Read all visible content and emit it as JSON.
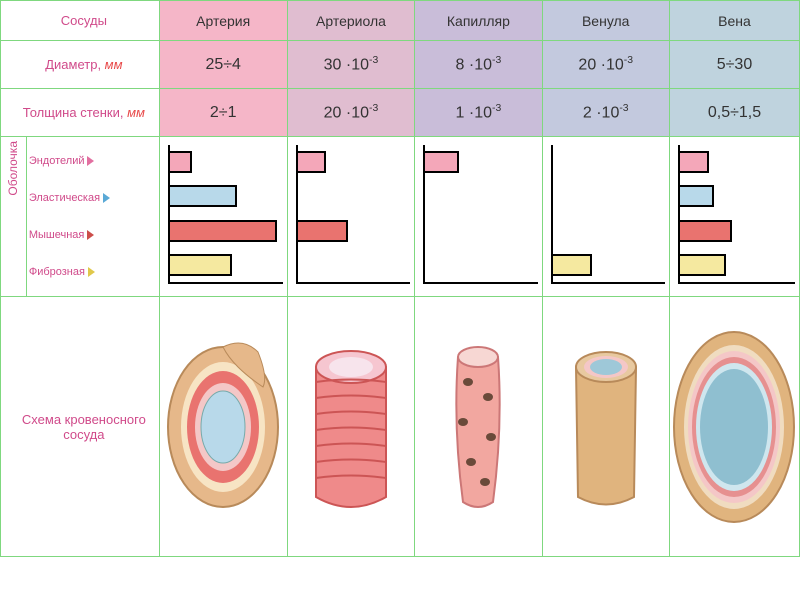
{
  "labels": {
    "vessels": "Сосуды",
    "diameter": "Диаметр",
    "thickness": "Толщина стенки",
    "mm": "мм",
    "membrane": "Оболочка",
    "schema": "Схема кровеносного сосуда"
  },
  "vessels": [
    {
      "name": "Артерия",
      "bg": "#f5b6c8",
      "diameter_html": "25÷4",
      "thickness_html": "2÷1"
    },
    {
      "name": "Артериола",
      "bg": "#e0bdd0",
      "diameter_html": "30 ·10<sup>-3</sup>",
      "thickness_html": "20 ·10<sup>-3</sup>"
    },
    {
      "name": "Капилляр",
      "bg": "#c9bdd9",
      "diameter_html": "8 ·10<sup>-3</sup>",
      "thickness_html": "1 ·10<sup>-3</sup>"
    },
    {
      "name": "Венула",
      "bg": "#c3c9de",
      "diameter_html": "20 ·10<sup>-3</sup>",
      "thickness_html": "2 ·10<sup>-3</sup>"
    },
    {
      "name": "Вена",
      "bg": "#bfd3de",
      "diameter_html": "5÷30",
      "thickness_html": "0,5÷1,5"
    }
  ],
  "layers": [
    {
      "name": "Эндотелий",
      "color": "#f4a7b9",
      "dot_color": "#e26fa0"
    },
    {
      "name": "Эластическая",
      "color": "#b8d9ea",
      "dot_color": "#5aa9d6"
    },
    {
      "name": "Мышечная",
      "color": "#e9736f",
      "dot_color": "#cc4e4a"
    },
    {
      "name": "Фиброзная",
      "color": "#f5e9a0",
      "dot_color": "#e0c84a"
    }
  ],
  "bars_max_pct": 95,
  "bars": [
    [
      20,
      60,
      95,
      55
    ],
    [
      25,
      0,
      45,
      0
    ],
    [
      30,
      0,
      0,
      0
    ],
    [
      0,
      0,
      0,
      35
    ],
    [
      25,
      30,
      45,
      40
    ]
  ],
  "col_width_label": 160,
  "col_width_vessel": 128,
  "row_heights": {
    "bars": 160,
    "schema": 260
  }
}
